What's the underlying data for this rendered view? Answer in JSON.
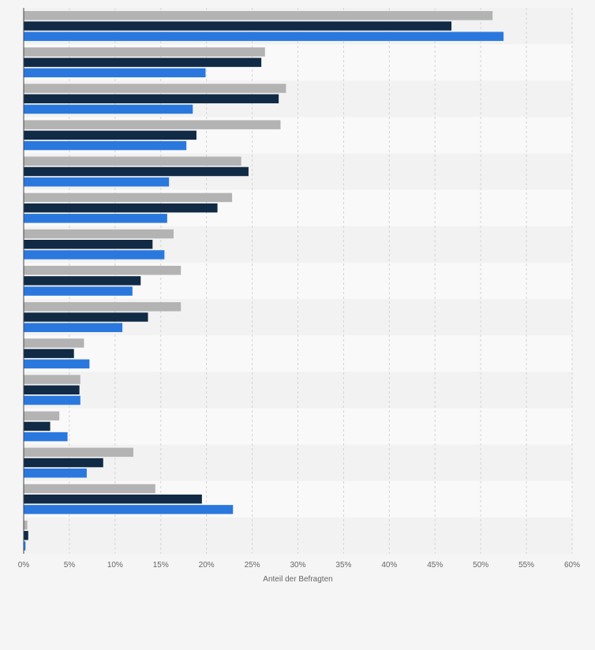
{
  "chart_data": {
    "type": "bar",
    "orientation": "horizontal",
    "categories": [
      "",
      "",
      "",
      "",
      "",
      "",
      "",
      "",
      "",
      "",
      "",
      "",
      "",
      "",
      ""
    ],
    "series": [
      {
        "color": "#b3b3b3",
        "values": [
          51.3,
          26.4,
          28.7,
          28.1,
          23.8,
          22.8,
          16.4,
          17.2,
          17.2,
          6.6,
          6.2,
          3.9,
          12.0,
          14.4,
          0.4
        ]
      },
      {
        "color": "#112a45",
        "values": [
          46.8,
          26.0,
          27.9,
          18.9,
          24.6,
          21.2,
          14.1,
          12.8,
          13.6,
          5.5,
          6.1,
          2.9,
          8.7,
          19.5,
          0.5
        ]
      },
      {
        "color": "#2a78de",
        "values": [
          52.5,
          19.9,
          18.5,
          17.8,
          15.9,
          15.7,
          15.4,
          11.9,
          10.8,
          7.2,
          6.2,
          4.8,
          6.9,
          22.9,
          0.2
        ]
      }
    ],
    "xlabel": "Anteil der Befragten",
    "xlim": [
      0,
      60
    ],
    "xticks": [
      0,
      5,
      10,
      15,
      20,
      25,
      30,
      35,
      40,
      45,
      50,
      55,
      60
    ],
    "tick_suffix": "%",
    "grid": true,
    "legend": "none"
  }
}
